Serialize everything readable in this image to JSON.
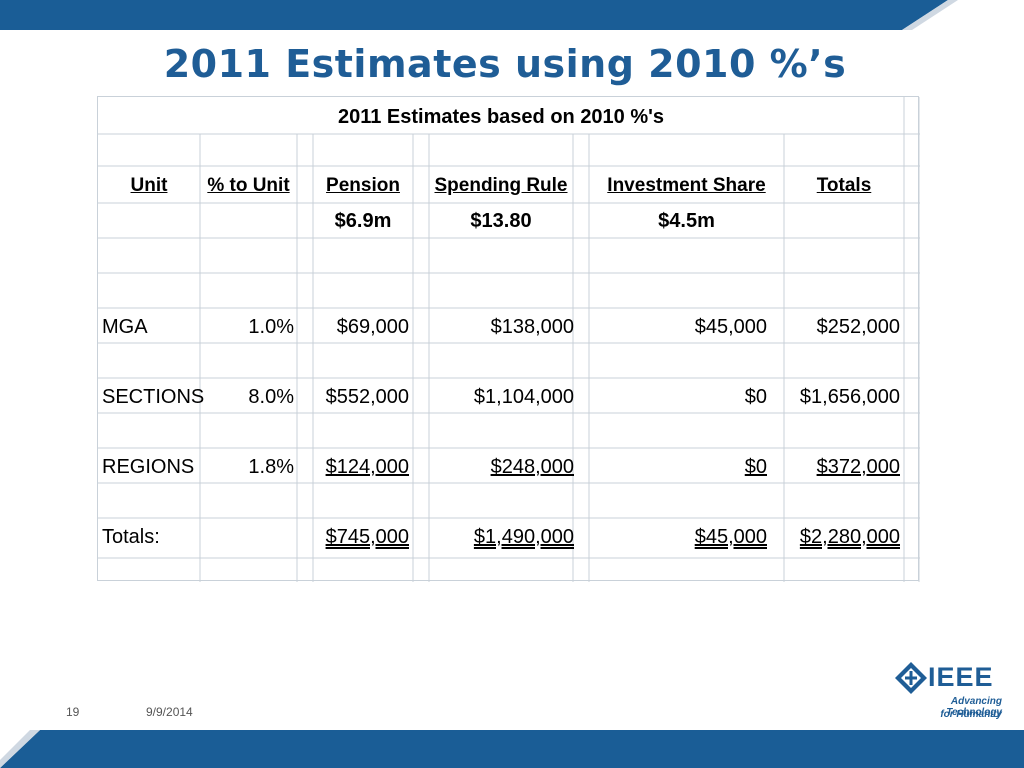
{
  "slide": {
    "title": "2011 Estimates using 2010 %’s",
    "slide_number": "19",
    "date": "9/9/2014"
  },
  "colors": {
    "title": "#1f5d96",
    "band": "#1a5d96",
    "grid": "#c9d1d9"
  },
  "table": {
    "caption": "2011 Estimates based on 2010 %'s",
    "headers": [
      "Unit",
      "% to Unit",
      "Pension",
      "Spending Rule",
      "Investment Share",
      "Totals"
    ],
    "bases": [
      "$6.9m",
      "$13.80",
      "$4.5m"
    ],
    "rows": [
      [
        "MGA",
        "1.0%",
        "$69,000",
        "$138,000",
        "$45,000",
        "$252,000"
      ],
      [
        "SECTIONS",
        "8.0%",
        "$552,000",
        "$1,104,000",
        "$0",
        "$1,656,000"
      ],
      [
        "REGIONS",
        "1.8%",
        "$124,000",
        "$248,000",
        "$0",
        "$372,000"
      ],
      [
        "Totals:",
        "",
        "$745,000",
        "$1,490,000",
        "$45,000",
        "$2,280,000"
      ]
    ]
  },
  "logo": {
    "word": "IEEE",
    "tagline_1": "Advancing Technology",
    "tagline_2": "for Humanity",
    "icon": "ieee-diamond-icon"
  }
}
